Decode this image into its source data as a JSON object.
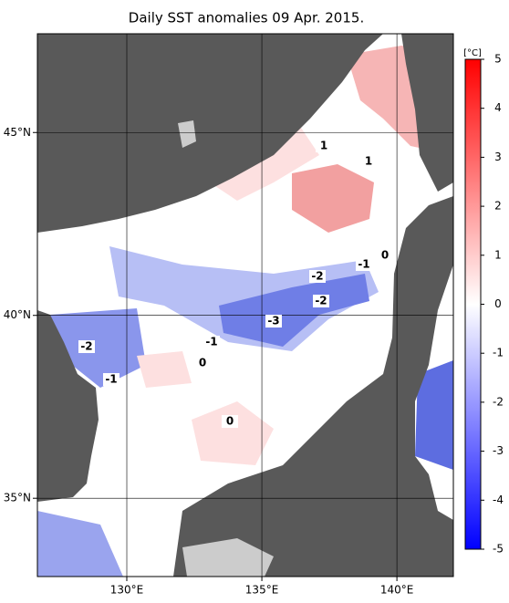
{
  "title": "Daily SST anomalies 09 Apr. 2015.",
  "map": {
    "lon_lim": [
      126.69,
      142.09
    ],
    "lat_lim": [
      32.86,
      47.7
    ],
    "lon_ticks": [
      {
        "value": 130,
        "label": "130°E"
      },
      {
        "value": 135,
        "label": "135°E"
      },
      {
        "value": 140,
        "label": "140°E"
      }
    ],
    "lat_ticks": [
      {
        "value": 35,
        "label": "35°N"
      },
      {
        "value": 40,
        "label": "40°N"
      },
      {
        "value": 45,
        "label": "45°N"
      }
    ],
    "land_color": "#595959",
    "contour_labels": [
      1,
      1,
      0,
      -1,
      -2,
      -2,
      -3,
      -1,
      0,
      -2,
      -1,
      0
    ]
  },
  "colorbar": {
    "unit": "[°C]",
    "lim": [
      -5,
      5
    ],
    "ticks": [
      -5,
      -4,
      -3,
      -2,
      -1,
      0,
      1,
      2,
      3,
      4,
      5
    ],
    "cmap": {
      "low": "#0000ff",
      "mid": "#ffffff",
      "high": "#ff0000"
    }
  }
}
